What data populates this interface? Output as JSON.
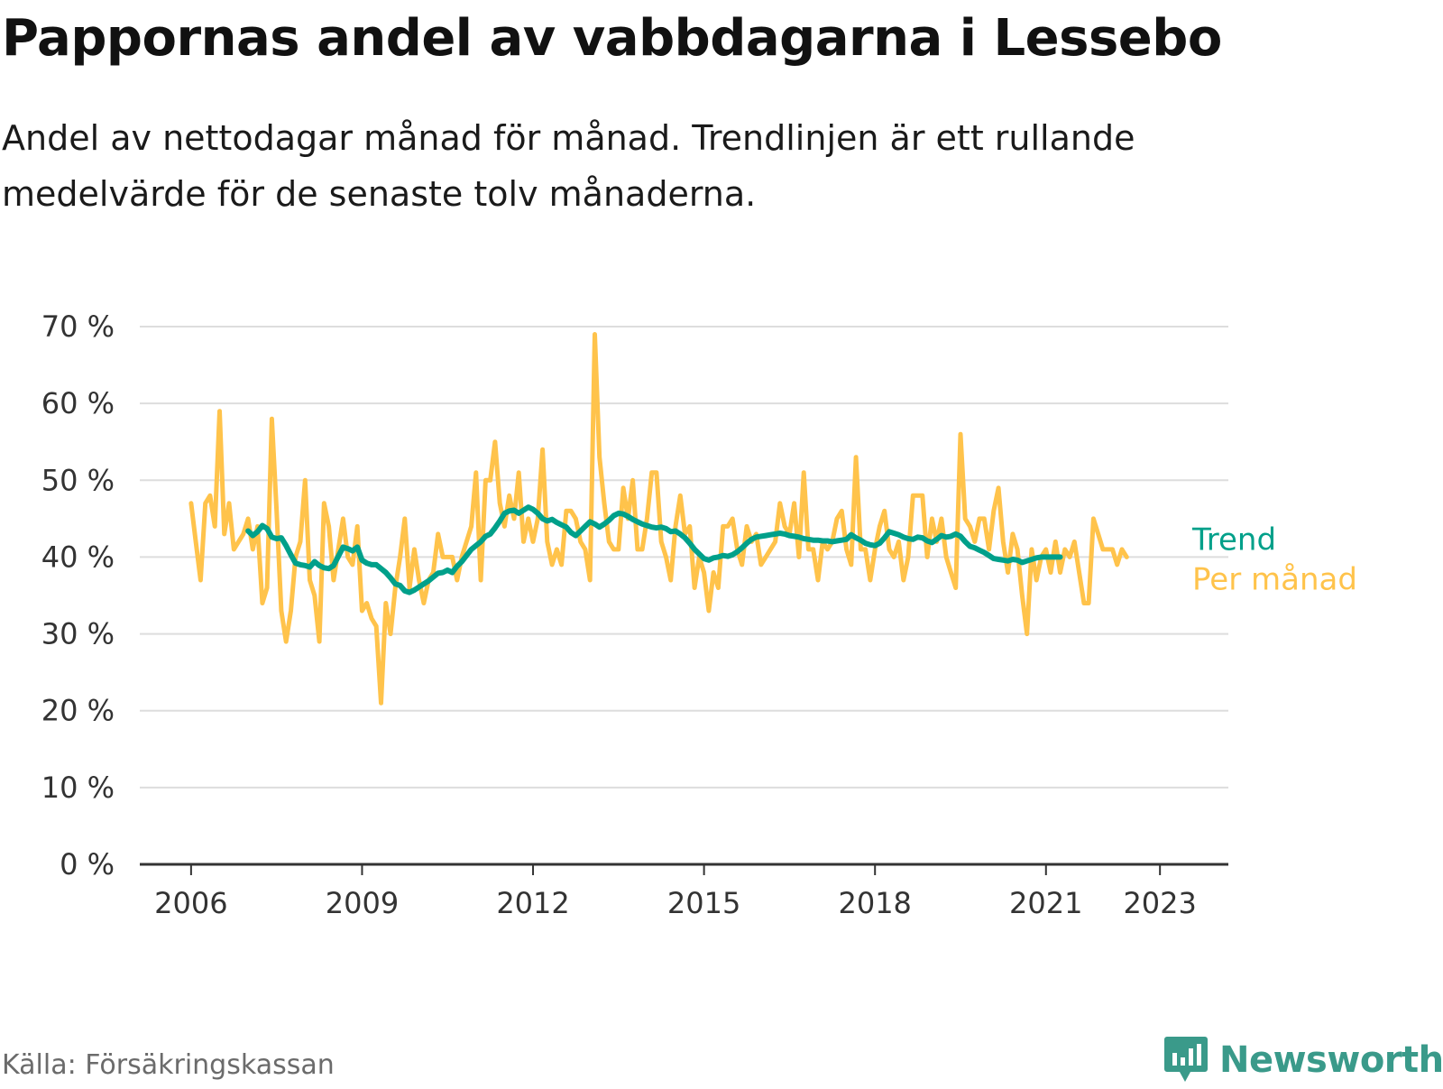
{
  "title": "Pappornas andel av vabbdagarna i Lessebo",
  "subtitle": "Andel av nettodagar månad för månad. Trendlinjen är ett rullande medelvärde för de senaste tolv månaderna.",
  "source": "Källa: Försäkringskassan",
  "brand": "Newsworthy",
  "colors": {
    "trend": "#00a08a",
    "monthly": "#ffc34b",
    "grid": "#dddddd",
    "axis": "#333333",
    "brand": "#3a9a8a"
  },
  "chart_data": {
    "type": "line",
    "x_start": 2006.0,
    "x_step": 0.08333,
    "xlim": [
      2005.1,
      2024.2
    ],
    "ylim": [
      0,
      70
    ],
    "y_ticks": [
      0,
      10,
      20,
      30,
      40,
      50,
      60,
      70
    ],
    "y_tick_labels": [
      "0 %",
      "10 %",
      "20 %",
      "30 %",
      "40 %",
      "50 %",
      "60 %",
      "70 %"
    ],
    "x_ticks": [
      2006,
      2009,
      2012,
      2015,
      2018,
      2021,
      2023
    ],
    "x_tick_labels": [
      "2006",
      "2009",
      "2012",
      "2015",
      "2018",
      "2021",
      "2023"
    ],
    "grid": true,
    "series": [
      {
        "name": "Per månad",
        "key": "monthly",
        "values": [
          47,
          42,
          37,
          47,
          48,
          44,
          59,
          43,
          47,
          41,
          42,
          43,
          45,
          41,
          44,
          34,
          36,
          58,
          46,
          33,
          29,
          33,
          40,
          42,
          50,
          37,
          35,
          29,
          47,
          44,
          37,
          41,
          45,
          40,
          39,
          44,
          33,
          34,
          32,
          31,
          21,
          34,
          30,
          36,
          40,
          45,
          36,
          41,
          37,
          34,
          37,
          38,
          43,
          40,
          40,
          40,
          37,
          40,
          42,
          44,
          51,
          37,
          50,
          50,
          55,
          47,
          44,
          48,
          45,
          51,
          42,
          45,
          42,
          45,
          54,
          42,
          39,
          41,
          39,
          46,
          46,
          45,
          42,
          41,
          37,
          69,
          53,
          47,
          42,
          41,
          41,
          49,
          45,
          50,
          41,
          41,
          45,
          51,
          51,
          42,
          40,
          37,
          44,
          48,
          43,
          44,
          36,
          40,
          38,
          33,
          38,
          36,
          44,
          44,
          45,
          41,
          39,
          44,
          42,
          43,
          39,
          40,
          41,
          42,
          47,
          44,
          43,
          47,
          40,
          51,
          41,
          41,
          37,
          42,
          41,
          42,
          45,
          46,
          41,
          39,
          53,
          41,
          41,
          37,
          41,
          44,
          46,
          41,
          40,
          42,
          37,
          40,
          48,
          48,
          48,
          40,
          45,
          42,
          45,
          40,
          38,
          36,
          56,
          45,
          44,
          42,
          45,
          45,
          41,
          46,
          49,
          42,
          38,
          43,
          41,
          35,
          30,
          41,
          37,
          40,
          41,
          38,
          42,
          38,
          41,
          40,
          42,
          38,
          34,
          34,
          45,
          43,
          41,
          41,
          41,
          39,
          41,
          40
        ]
      },
      {
        "name": "Trend",
        "key": "trend",
        "values": [
          43.4,
          42.8,
          43.3,
          44.1,
          43.7,
          42.6,
          42.4,
          42.5,
          41.5,
          40.3,
          39.2,
          39.0,
          38.9,
          38.7,
          39.4,
          38.9,
          38.6,
          38.5,
          38.9,
          40.1,
          41.3,
          41.1,
          40.8,
          41.3,
          39.6,
          39.2,
          39.0,
          39.0,
          38.5,
          38.0,
          37.3,
          36.5,
          36.3,
          35.6,
          35.4,
          35.7,
          36.1,
          36.5,
          36.9,
          37.4,
          37.9,
          38.0,
          38.3,
          38.0,
          38.8,
          39.4,
          40.2,
          41.0,
          41.5,
          42.0,
          42.7,
          43.0,
          43.8,
          44.7,
          45.7,
          46.0,
          46.1,
          45.7,
          46.1,
          46.5,
          46.2,
          45.7,
          45.0,
          44.7,
          44.9,
          44.5,
          44.2,
          43.9,
          43.2,
          42.8,
          43.4,
          44.0,
          44.6,
          44.3,
          43.9,
          44.3,
          44.8,
          45.4,
          45.7,
          45.6,
          45.3,
          44.9,
          44.6,
          44.3,
          44.1,
          43.9,
          43.8,
          43.9,
          43.7,
          43.3,
          43.4,
          43.0,
          42.5,
          41.8,
          41.0,
          40.4,
          39.8,
          39.6,
          39.9,
          40.0,
          40.2,
          40.1,
          40.3,
          40.7,
          41.2,
          41.8,
          42.3,
          42.6,
          42.7,
          42.8,
          42.9,
          43.0,
          43.1,
          43.0,
          42.8,
          42.7,
          42.6,
          42.4,
          42.3,
          42.2,
          42.2,
          42.1,
          42.1,
          42.0,
          42.1,
          42.2,
          42.3,
          42.9,
          42.5,
          42.2,
          41.8,
          41.6,
          41.5,
          41.8,
          42.5,
          43.3,
          43.1,
          42.9,
          42.6,
          42.4,
          42.3,
          42.6,
          42.5,
          42.1,
          41.9,
          42.3,
          42.8,
          42.6,
          42.7,
          43.0,
          42.7,
          42.0,
          41.4,
          41.2,
          40.9,
          40.6,
          40.2,
          39.8,
          39.7,
          39.6,
          39.5,
          39.7,
          39.6,
          39.3,
          39.5,
          39.7,
          39.9,
          40.0,
          40.0,
          40.0,
          40.0,
          40.0
        ]
      }
    ],
    "trend_start_index": 12
  }
}
